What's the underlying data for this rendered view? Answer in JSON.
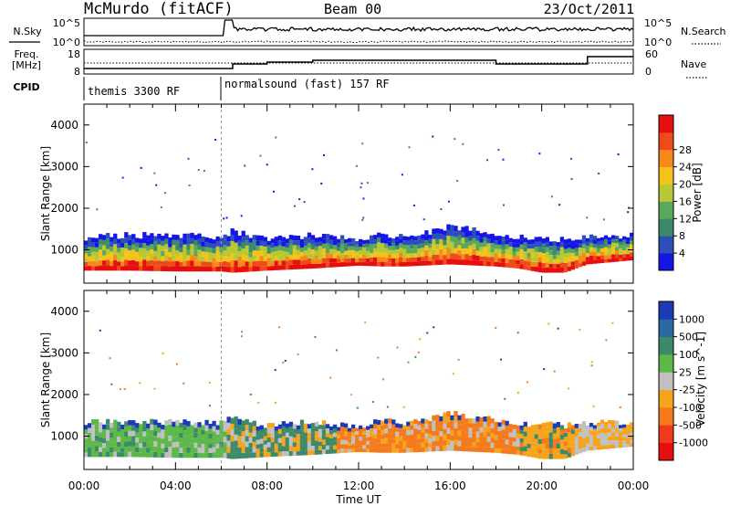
{
  "header": {
    "station": "McMurdo (fitACF)",
    "beam": "Beam 00",
    "date": "23/Oct/2011"
  },
  "summary_panels": {
    "nsky_label": "N.Sky",
    "nsearch_label": "N.Search",
    "freq_label_1": "Freq.",
    "freq_label_2": "[MHz]",
    "nave_label": "Nave",
    "cpid_label": "CPID",
    "noise_ticks_left": [
      "10^5",
      "10^0"
    ],
    "noise_ticks_right": [
      "10^5",
      "10^0"
    ],
    "freq_ticks": [
      "18",
      "8"
    ],
    "nave_ticks": [
      "60",
      "0"
    ]
  },
  "cpid_segments": [
    {
      "label": "themis 3300 RF",
      "start_hour": 0.0,
      "end_hour": 6.0
    },
    {
      "label": "normalsound (fast) 157 RF",
      "start_hour": 6.0,
      "end_hour": 24.0
    }
  ],
  "chart_data": [
    {
      "type": "heatmap",
      "panel": "power",
      "ylabel": "Slant Range [km]",
      "xlabel": "Time UT",
      "xlim": [
        0,
        24
      ],
      "ylim": [
        200,
        4500
      ],
      "x_ticks": [
        "00:00",
        "04:00",
        "08:00",
        "12:00",
        "16:00",
        "20:00",
        "00:00"
      ],
      "y_ticks": [
        "1000",
        "2000",
        "3000",
        "4000"
      ],
      "colorbar": {
        "label": "Power [dB]",
        "ticks": [
          "4",
          "8",
          "12",
          "16",
          "20",
          "24",
          "28"
        ],
        "colors": [
          "#1515e6",
          "#2d4fb8",
          "#3d8a6a",
          "#5aa85a",
          "#b8c832",
          "#f5c21b",
          "#f58a1b",
          "#ef4a1b",
          "#e60f0f"
        ]
      },
      "echo_band_km": {
        "hours": [
          0,
          2,
          4,
          6,
          6.5,
          8,
          10,
          12,
          13,
          14,
          16,
          18,
          19,
          20,
          21,
          22,
          24
        ],
        "bottom": [
          500,
          500,
          480,
          480,
          450,
          500,
          550,
          620,
          600,
          600,
          650,
          600,
          550,
          450,
          450,
          650,
          750
        ],
        "top": [
          1300,
          1350,
          1350,
          1300,
          1450,
          1250,
          1350,
          1250,
          1350,
          1300,
          1550,
          1400,
          1300,
          1300,
          1250,
          1300,
          1350
        ]
      }
    },
    {
      "type": "heatmap",
      "panel": "velocity",
      "ylabel": "Slant Range [km]",
      "xlabel": "Time UT",
      "xlim": [
        0,
        24
      ],
      "ylim": [
        200,
        4500
      ],
      "x_ticks": [
        "00:00",
        "04:00",
        "08:00",
        "12:00",
        "16:00",
        "20:00",
        "00:00"
      ],
      "y_ticks": [
        "1000",
        "2000",
        "3000",
        "4000"
      ],
      "colorbar": {
        "label": "Velocity [m s^-1]",
        "ticks": [
          "1000",
          "500",
          "100",
          "25",
          "-25",
          "-100",
          "-500",
          "-1000"
        ],
        "colors": [
          "#1a3ab8",
          "#2a6aa0",
          "#3d8a6a",
          "#5cb848",
          "#c0c0c0",
          "#f5a41b",
          "#f57a1b",
          "#ef3a1b",
          "#e60f0f"
        ]
      },
      "echo_band_km": {
        "hours": [
          0,
          2,
          4,
          6,
          6.5,
          8,
          10,
          12,
          13,
          14,
          16,
          18,
          19,
          20,
          21,
          22,
          24
        ],
        "bottom": [
          500,
          500,
          480,
          480,
          450,
          500,
          550,
          620,
          600,
          600,
          650,
          600,
          550,
          450,
          450,
          650,
          750
        ],
        "top": [
          1350,
          1350,
          1350,
          1300,
          1450,
          1250,
          1350,
          1250,
          1400,
          1300,
          1550,
          1400,
          1300,
          1300,
          1250,
          1300,
          1350
        ]
      }
    }
  ]
}
